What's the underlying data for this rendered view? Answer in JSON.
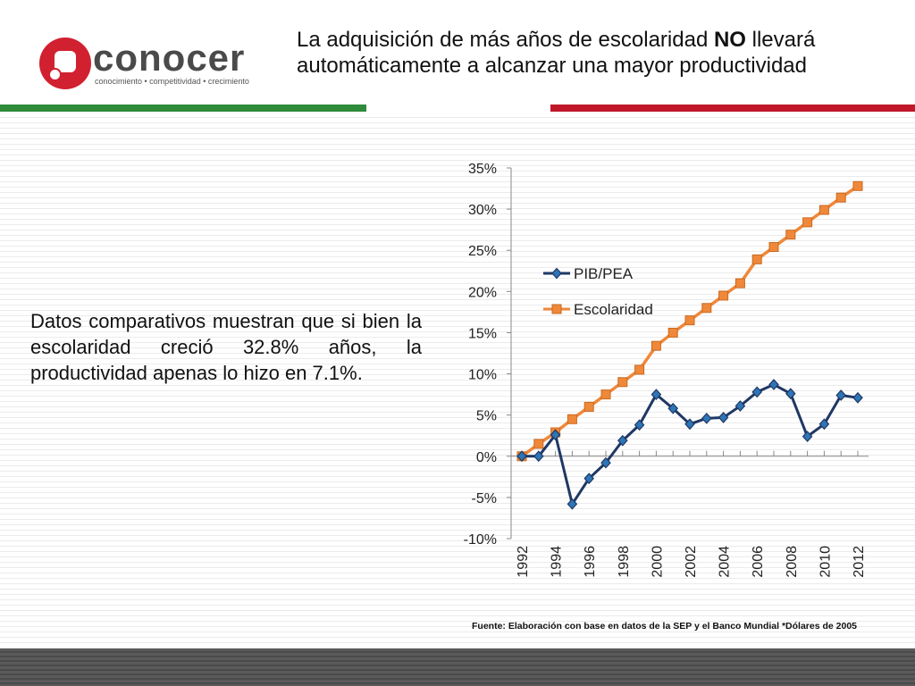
{
  "header": {
    "logo_word": "conocer",
    "logo_tagline": "conocimiento • competitividad • crecimiento",
    "title_part1": "La adquisición de más años de escolaridad ",
    "title_bold": "NO",
    "title_part2": " llevará automáticamente a alcanzar una mayor productividad"
  },
  "body_text": "Datos comparativos muestran que si bien la escolaridad creció 32.8% años, la productividad apenas lo hizo en 7.1%.",
  "source_note": "Fuente: Elaboración con base en datos de la SEP y el Banco Mundial  *Dólares de 2005",
  "colors": {
    "pib": "#1f3864",
    "escolaridad": "#f0883a",
    "green_rule": "#2f8a3a",
    "red_rule": "#c0182a",
    "logo_red": "#d1202f"
  },
  "chart_data": {
    "type": "line",
    "title": "",
    "xlabel": "",
    "ylabel": "",
    "x": [
      1992,
      1993,
      1994,
      1995,
      1996,
      1997,
      1998,
      1999,
      2000,
      2001,
      2002,
      2003,
      2004,
      2005,
      2006,
      2007,
      2008,
      2009,
      2010,
      2011,
      2012
    ],
    "x_tick_labels": [
      "1992",
      "1994",
      "1996",
      "1998",
      "2000",
      "2002",
      "2004",
      "2006",
      "2008",
      "2010",
      "2012"
    ],
    "y_tick_labels": [
      "35%",
      "30%",
      "25%",
      "20%",
      "15%",
      "10%",
      "5%",
      "0%",
      "-5%",
      "-10%"
    ],
    "y_ticks": [
      35,
      30,
      25,
      20,
      15,
      10,
      5,
      0,
      -5,
      -10
    ],
    "ylim": [
      -10,
      35
    ],
    "legend_position": "center-left",
    "series": [
      {
        "name": "PIB/PEA",
        "marker": "diamond",
        "values": [
          0.0,
          0.0,
          2.6,
          -5.8,
          -2.7,
          -0.8,
          1.9,
          3.8,
          7.5,
          5.8,
          3.9,
          4.6,
          4.7,
          6.1,
          7.8,
          8.7,
          7.6,
          2.4,
          3.9,
          7.4,
          7.1
        ]
      },
      {
        "name": "Escolaridad",
        "marker": "square",
        "values": [
          0.0,
          1.5,
          2.9,
          4.5,
          6.0,
          7.5,
          9.0,
          10.5,
          13.4,
          15.0,
          16.5,
          18.0,
          19.5,
          21.0,
          23.9,
          25.4,
          26.9,
          28.4,
          29.9,
          31.4,
          32.8
        ]
      }
    ]
  }
}
